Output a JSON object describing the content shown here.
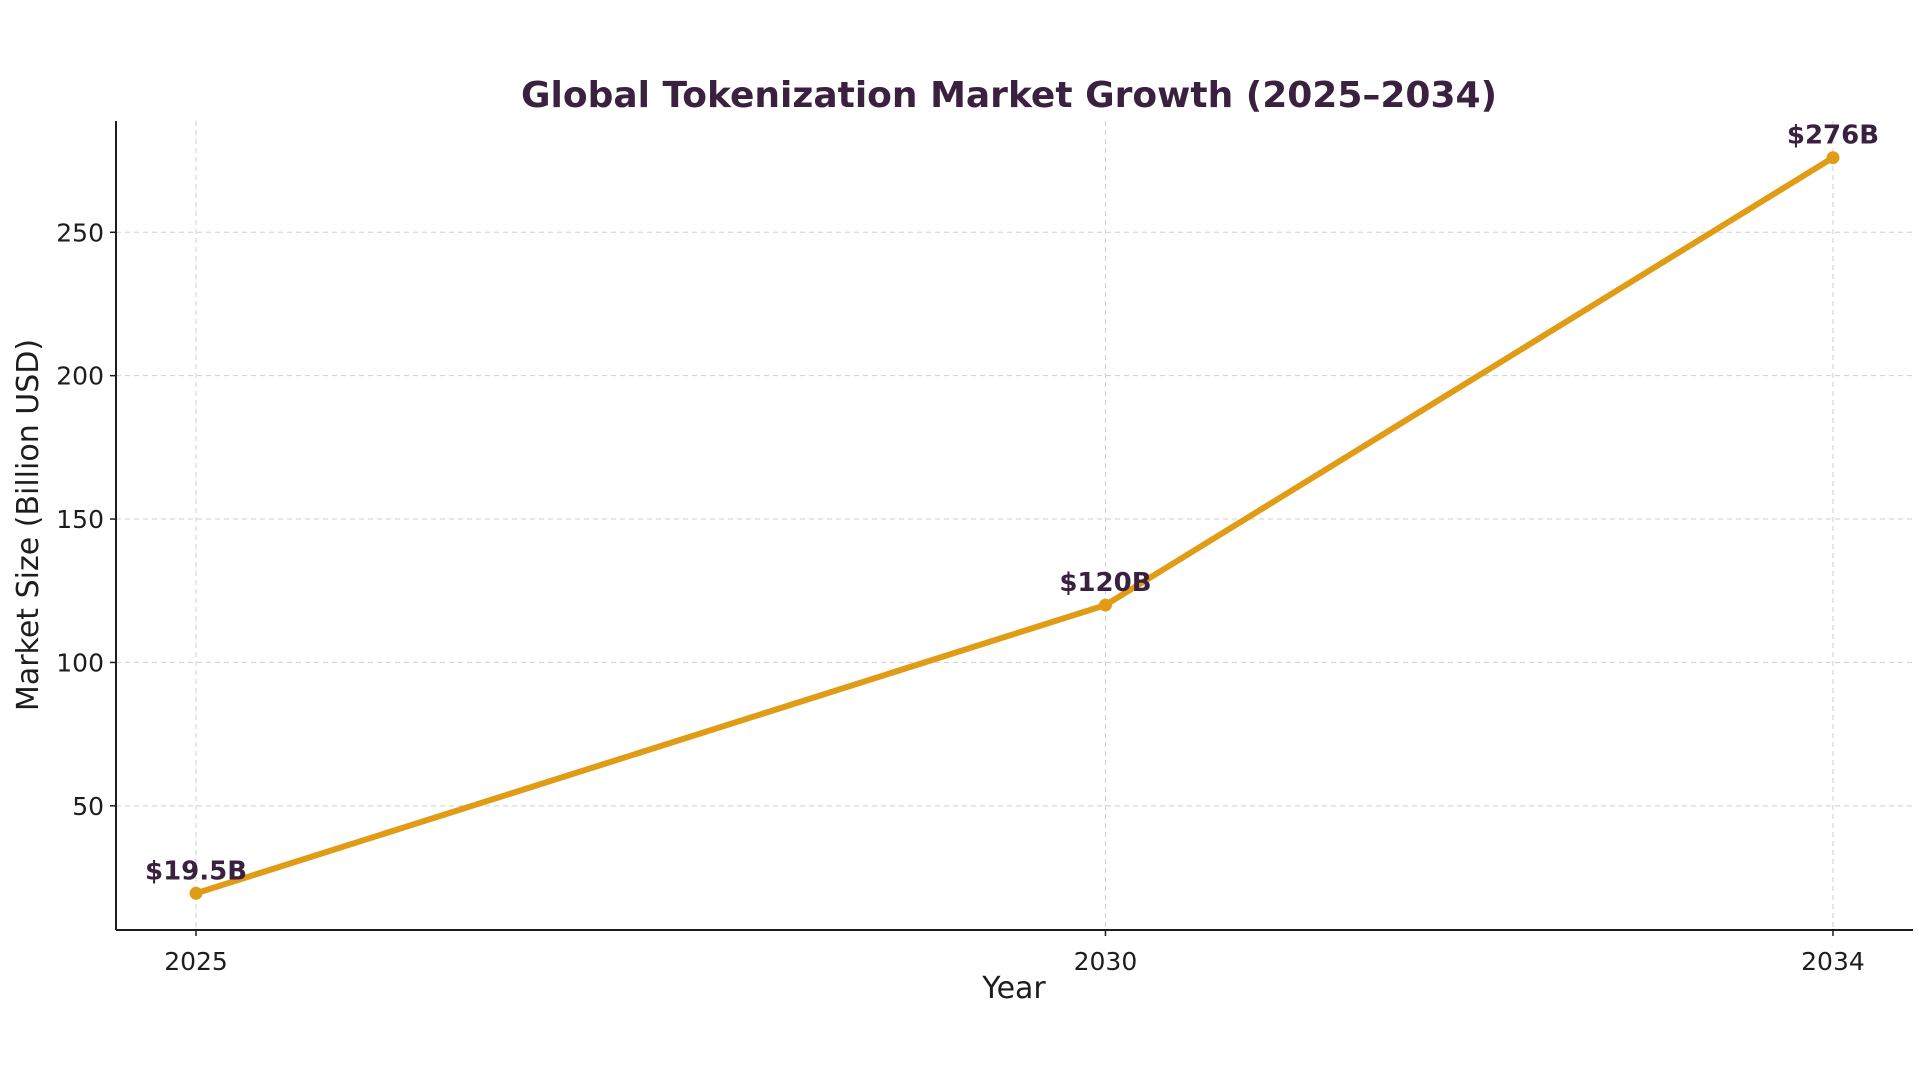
{
  "chart_data": {
    "type": "line",
    "title": "Global Tokenization Market Growth (2025–2034)",
    "xlabel": "Year",
    "ylabel": "Market Size (Billion USD)",
    "x": [
      2025,
      2030,
      2034
    ],
    "x_tick_labels": [
      "2025",
      "2030",
      "2034"
    ],
    "xlim": [
      2024.56,
      2034.44
    ],
    "y_ticks": [
      50,
      100,
      150,
      200,
      250
    ],
    "y_tick_labels": [
      "50",
      "100",
      "150",
      "200",
      "250"
    ],
    "ylim": [
      6.7,
      288.8
    ],
    "grid": true,
    "series": [
      {
        "values": [
          19.5,
          120,
          276
        ],
        "data_labels": [
          "$19.5B",
          "$120B",
          "$276B"
        ],
        "color": "#e09c14"
      }
    ]
  }
}
